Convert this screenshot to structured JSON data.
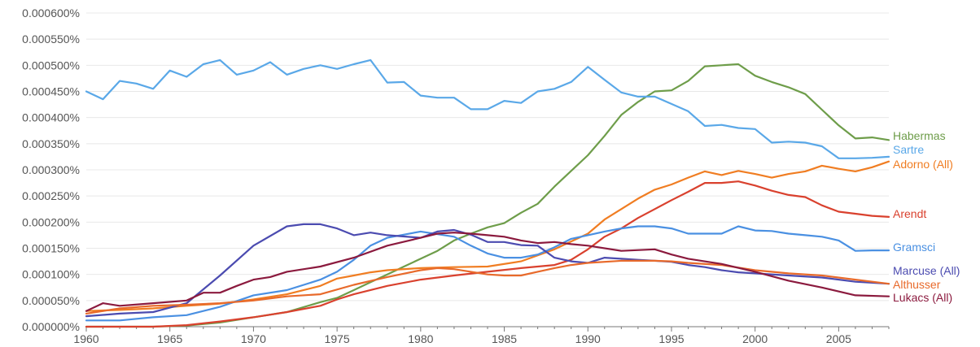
{
  "chart_data": {
    "type": "line",
    "xlim": [
      1960,
      2008
    ],
    "ylim": [
      0,
      0.0006
    ],
    "grid": true,
    "legend_position": "right-end-labels",
    "x_ticks": [
      {
        "value": 1960,
        "label": "1960"
      },
      {
        "value": 1965,
        "label": "1965"
      },
      {
        "value": 1970,
        "label": "1970"
      },
      {
        "value": 1975,
        "label": "1975"
      },
      {
        "value": 1980,
        "label": "1980"
      },
      {
        "value": 1985,
        "label": "1985"
      },
      {
        "value": 1990,
        "label": "1990"
      },
      {
        "value": 1995,
        "label": "1995"
      },
      {
        "value": 2000,
        "label": "2000"
      },
      {
        "value": 2005,
        "label": "2005"
      }
    ],
    "y_ticks": [
      {
        "value": 0.0,
        "label": "0.000000%"
      },
      {
        "value": 5e-05,
        "label": "0.000050%"
      },
      {
        "value": 0.0001,
        "label": "0.000100%"
      },
      {
        "value": 0.00015,
        "label": "0.000150%"
      },
      {
        "value": 0.0002,
        "label": "0.000200%"
      },
      {
        "value": 0.00025,
        "label": "0.000250%"
      },
      {
        "value": 0.0003,
        "label": "0.000300%"
      },
      {
        "value": 0.00035,
        "label": "0.000350%"
      },
      {
        "value": 0.0004,
        "label": "0.000400%"
      },
      {
        "value": 0.00045,
        "label": "0.000450%"
      },
      {
        "value": 0.0005,
        "label": "0.000500%"
      },
      {
        "value": 0.00055,
        "label": "0.000550%"
      },
      {
        "value": 0.0006,
        "label": "0.000600%"
      }
    ],
    "series": [
      {
        "name": "Habermas",
        "color": "#6e9d4a",
        "x": [
          1960,
          1962,
          1964,
          1966,
          1968,
          1970,
          1972,
          1974,
          1975,
          1976,
          1977,
          1978,
          1979,
          1980,
          1981,
          1982,
          1983,
          1984,
          1985,
          1986,
          1987,
          1988,
          1989,
          1990,
          1991,
          1992,
          1993,
          1994,
          1995,
          1996,
          1997,
          1998,
          1999,
          2000,
          2001,
          2002,
          2003,
          2004,
          2005,
          2006,
          2007,
          2008
        ],
        "y": [
          0.0,
          0.0,
          0.0,
          2e-06,
          8e-06,
          1.8e-05,
          2.8e-05,
          4.7e-05,
          5.5e-05,
          7e-05,
          8.5e-05,
          0.0001,
          0.000115,
          0.00013,
          0.000145,
          0.000165,
          0.000178,
          0.00019,
          0.000198,
          0.000218,
          0.000235,
          0.000268,
          0.000298,
          0.000328,
          0.000365,
          0.000405,
          0.00043,
          0.00045,
          0.000452,
          0.00047,
          0.000498,
          0.0005,
          0.000502,
          0.00048,
          0.000468,
          0.000458,
          0.000445,
          0.000415,
          0.000385,
          0.00036,
          0.000362,
          0.000357
        ]
      },
      {
        "name": "Sartre",
        "color": "#5aa8e8",
        "x": [
          1960,
          1961,
          1962,
          1963,
          1964,
          1965,
          1966,
          1967,
          1968,
          1969,
          1970,
          1971,
          1972,
          1973,
          1974,
          1975,
          1976,
          1977,
          1978,
          1979,
          1980,
          1981,
          1982,
          1983,
          1984,
          1985,
          1986,
          1987,
          1988,
          1989,
          1990,
          1991,
          1992,
          1993,
          1994,
          1995,
          1996,
          1997,
          1998,
          1999,
          2000,
          2001,
          2002,
          2003,
          2004,
          2005,
          2006,
          2007,
          2008
        ],
        "y": [
          0.00045,
          0.000435,
          0.00047,
          0.000465,
          0.000455,
          0.00049,
          0.000478,
          0.000502,
          0.00051,
          0.000482,
          0.00049,
          0.000506,
          0.000482,
          0.000493,
          0.0005,
          0.000493,
          0.000502,
          0.00051,
          0.000467,
          0.000468,
          0.000442,
          0.000438,
          0.000438,
          0.000416,
          0.000416,
          0.000432,
          0.000428,
          0.00045,
          0.000455,
          0.000468,
          0.000497,
          0.000472,
          0.000448,
          0.00044,
          0.00044,
          0.000426,
          0.000412,
          0.000384,
          0.000386,
          0.00038,
          0.000378,
          0.000352,
          0.000354,
          0.000352,
          0.000345,
          0.000322,
          0.000322,
          0.000323,
          0.000325
        ]
      },
      {
        "name": "Adorno (All)",
        "color": "#f07d22",
        "x": [
          1960,
          1962,
          1964,
          1966,
          1968,
          1970,
          1972,
          1974,
          1975,
          1976,
          1977,
          1978,
          1980,
          1982,
          1984,
          1986,
          1988,
          1990,
          1991,
          1992,
          1993,
          1994,
          1995,
          1996,
          1997,
          1998,
          1999,
          2000,
          2001,
          2002,
          2003,
          2004,
          2005,
          2006,
          2007,
          2008
        ],
        "y": [
          3e-05,
          3.2e-05,
          3.5e-05,
          4e-05,
          4.4e-05,
          5.2e-05,
          6.2e-05,
          7.8e-05,
          9.2e-05,
          9.8e-05,
          0.000104,
          0.000108,
          0.000112,
          0.000114,
          0.000115,
          0.000125,
          0.000148,
          0.000178,
          0.000205,
          0.000225,
          0.000245,
          0.000262,
          0.000272,
          0.000285,
          0.000297,
          0.00029,
          0.000298,
          0.000292,
          0.000285,
          0.000292,
          0.000297,
          0.000308,
          0.000302,
          0.000297,
          0.000305,
          0.000316
        ]
      },
      {
        "name": "Arendt",
        "color": "#d9412e",
        "x": [
          1960,
          1964,
          1966,
          1968,
          1970,
          1972,
          1974,
          1975,
          1976,
          1978,
          1980,
          1982,
          1984,
          1986,
          1988,
          1989,
          1990,
          1991,
          1992,
          1993,
          1994,
          1995,
          1996,
          1997,
          1998,
          1999,
          2000,
          2001,
          2002,
          2003,
          2004,
          2005,
          2006,
          2007,
          2008
        ],
        "y": [
          0.0,
          0.0,
          3e-06,
          1e-05,
          1.8e-05,
          2.8e-05,
          4e-05,
          5.2e-05,
          6.2e-05,
          7.8e-05,
          9e-05,
          9.8e-05,
          0.000105,
          0.000112,
          0.000118,
          0.000128,
          0.000148,
          0.000172,
          0.000188,
          0.000208,
          0.000225,
          0.000242,
          0.000258,
          0.000275,
          0.000275,
          0.000278,
          0.00027,
          0.00026,
          0.000252,
          0.000248,
          0.000232,
          0.00022,
          0.000216,
          0.000212,
          0.00021
        ]
      },
      {
        "name": "Gramsci",
        "color": "#4a90e2",
        "x": [
          1960,
          1962,
          1964,
          1966,
          1968,
          1970,
          1972,
          1974,
          1975,
          1976,
          1977,
          1978,
          1980,
          1982,
          1983,
          1984,
          1985,
          1986,
          1987,
          1988,
          1989,
          1990,
          1991,
          1992,
          1993,
          1994,
          1995,
          1996,
          1997,
          1998,
          1999,
          2000,
          2001,
          2002,
          2003,
          2004,
          2005,
          2006,
          2007,
          2008
        ],
        "y": [
          1.2e-05,
          1.2e-05,
          1.8e-05,
          2.2e-05,
          3.8e-05,
          6e-05,
          7e-05,
          9e-05,
          0.000105,
          0.000128,
          0.000155,
          0.00017,
          0.000182,
          0.000172,
          0.000155,
          0.00014,
          0.000132,
          0.000132,
          0.000138,
          0.000152,
          0.000168,
          0.000175,
          0.000182,
          0.000188,
          0.000192,
          0.000192,
          0.000188,
          0.000178,
          0.000178,
          0.000178,
          0.000192,
          0.000184,
          0.000183,
          0.000178,
          0.000175,
          0.000172,
          0.000165,
          0.000145,
          0.000146,
          0.000146
        ]
      },
      {
        "name": "Marcuse (All)",
        "color": "#4b4bb0",
        "x": [
          1960,
          1962,
          1964,
          1966,
          1968,
          1970,
          1972,
          1973,
          1974,
          1975,
          1976,
          1977,
          1978,
          1980,
          1981,
          1982,
          1983,
          1984,
          1985,
          1986,
          1987,
          1988,
          1989,
          1990,
          1991,
          1992,
          1993,
          1994,
          1995,
          1996,
          1997,
          1998,
          1999,
          2000,
          2002,
          2004,
          2006,
          2008
        ],
        "y": [
          2e-05,
          2.5e-05,
          2.8e-05,
          4.5e-05,
          9.8e-05,
          0.000155,
          0.000192,
          0.000196,
          0.000196,
          0.000188,
          0.000175,
          0.00018,
          0.000175,
          0.00017,
          0.000182,
          0.000185,
          0.000176,
          0.000162,
          0.000162,
          0.000156,
          0.000155,
          0.000132,
          0.000125,
          0.000122,
          0.000132,
          0.00013,
          0.000128,
          0.000126,
          0.000124,
          0.000118,
          0.000114,
          0.000108,
          0.000104,
          0.000102,
          9.8e-05,
          9.4e-05,
          8.6e-05,
          8.2e-05
        ]
      },
      {
        "name": "Althusser",
        "color": "#e86a2b",
        "x": [
          1960,
          1962,
          1964,
          1966,
          1968,
          1970,
          1972,
          1974,
          1976,
          1978,
          1980,
          1981,
          1982,
          1983,
          1984,
          1985,
          1986,
          1987,
          1988,
          1989,
          1990,
          1992,
          1994,
          1995,
          1996,
          1998,
          2000,
          2002,
          2004,
          2006,
          2008
        ],
        "y": [
          2.5e-05,
          3.5e-05,
          4e-05,
          4.2e-05,
          4.5e-05,
          5e-05,
          5.8e-05,
          6.2e-05,
          8e-05,
          9.5e-05,
          0.000108,
          0.000112,
          0.00011,
          0.000105,
          0.0001,
          9.8e-05,
          9.8e-05,
          0.000105,
          0.000112,
          0.000118,
          0.000122,
          0.000126,
          0.000126,
          0.000125,
          0.000122,
          0.000118,
          0.000108,
          0.000102,
          9.8e-05,
          9e-05,
          8.2e-05
        ]
      },
      {
        "name": "Lukacs (All)",
        "color": "#8b1a3e",
        "x": [
          1960,
          1961,
          1962,
          1964,
          1966,
          1967,
          1968,
          1969,
          1970,
          1971,
          1972,
          1974,
          1976,
          1978,
          1980,
          1981,
          1982,
          1983,
          1984,
          1985,
          1986,
          1987,
          1988,
          1989,
          1990,
          1992,
          1994,
          1995,
          1996,
          1998,
          2000,
          2002,
          2004,
          2006,
          2008
        ],
        "y": [
          3e-05,
          4.5e-05,
          4e-05,
          4.5e-05,
          5e-05,
          6.5e-05,
          6.5e-05,
          7.8e-05,
          9e-05,
          9.5e-05,
          0.000105,
          0.000115,
          0.000132,
          0.000155,
          0.00017,
          0.000178,
          0.00018,
          0.000178,
          0.000175,
          0.000172,
          0.000165,
          0.00016,
          0.000162,
          0.000158,
          0.000155,
          0.000145,
          0.000148,
          0.000138,
          0.00013,
          0.00012,
          0.000105,
          8.8e-05,
          7.5e-05,
          6e-05,
          5.8e-05
        ]
      }
    ]
  }
}
